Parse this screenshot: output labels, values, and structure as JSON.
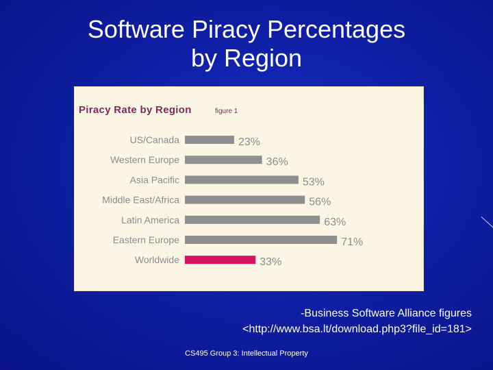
{
  "slide": {
    "title_line1": "Software Piracy Percentages",
    "title_line2": "by Region",
    "source_line1": "-Business Software Alliance figures",
    "source_line2": "<http://www.bsa.lt/download.php3?file_id=181>",
    "footer": "CS495 Group 3: Intellectual Property"
  },
  "chart_data": {
    "type": "bar",
    "orientation": "horizontal",
    "title": "Piracy Rate by Region",
    "subtitle": "figure 1",
    "categories": [
      "US/Canada",
      "Western Europe",
      "Asia Pacific",
      "Middle East/Africa",
      "Latin America",
      "Eastern Europe",
      "Worldwide"
    ],
    "values": [
      23,
      36,
      53,
      56,
      63,
      71,
      33
    ],
    "value_labels": [
      "23%",
      "36%",
      "53%",
      "56%",
      "63%",
      "71%",
      "33%"
    ],
    "bar_colors": [
      "#8f8f8f",
      "#8f8f8f",
      "#8f8f8f",
      "#8f8f8f",
      "#8f8f8f",
      "#8f8f8f",
      "#d6135e"
    ],
    "xlim": [
      0,
      100
    ],
    "grid": false,
    "colors": {
      "panel_background": "#fbf6e3",
      "category_text": "#8c8c8c",
      "value_text": "#8c8c8c",
      "title_text": "#7b2b5e"
    }
  }
}
